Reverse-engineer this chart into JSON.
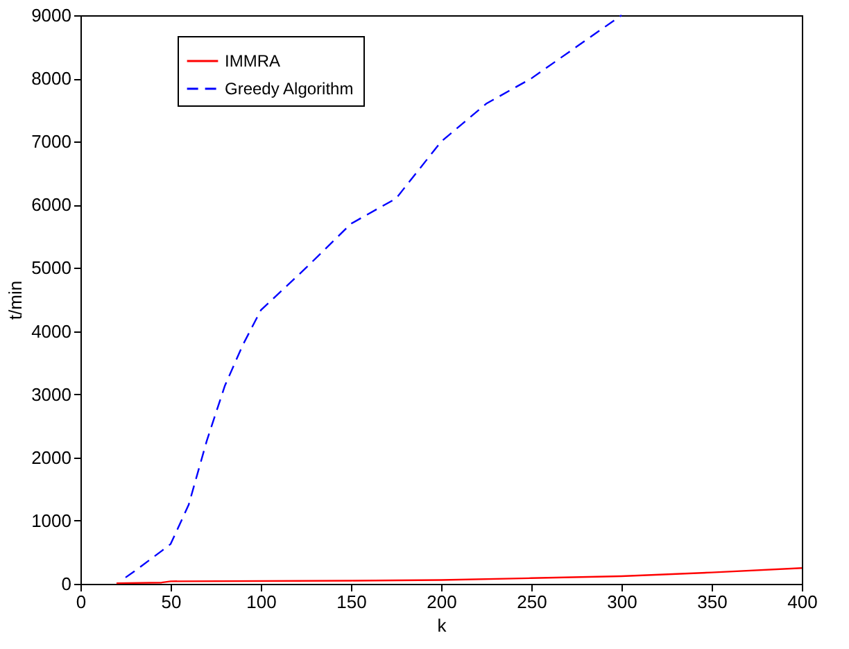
{
  "chart_data": {
    "type": "line",
    "xlabel": "k",
    "ylabel": "t/min",
    "xlim": [
      0,
      400
    ],
    "xticks": [
      0,
      50,
      100,
      150,
      200,
      250,
      300,
      350,
      400
    ],
    "ylim": [
      0,
      9000
    ],
    "yticks": [
      0,
      1000,
      2000,
      3000,
      4000,
      5000,
      6000,
      7000,
      8000,
      9000
    ],
    "legend": "top left",
    "grid": false,
    "marker": "none",
    "series": [
      {
        "name": "IMMRA",
        "color": "#ff0000",
        "line_style": "solid",
        "x": [
          20,
          45,
          50,
          150,
          200,
          250,
          300,
          350,
          400
        ],
        "values": [
          10,
          20,
          40,
          50,
          60,
          90,
          120,
          180,
          250
        ]
      },
      {
        "name": "Greedy Algorithm",
        "color": "#0000ff",
        "line_style": "dashed",
        "x": [
          25,
          30,
          45,
          50,
          60,
          70,
          80,
          90,
          100,
          125,
          150,
          175,
          200,
          225,
          250,
          275,
          300
        ],
        "values": [
          100,
          200,
          520,
          630,
          1250,
          2260,
          3130,
          3780,
          4330,
          5000,
          5700,
          6100,
          7000,
          7600,
          8000,
          8500,
          9000
        ]
      }
    ]
  }
}
